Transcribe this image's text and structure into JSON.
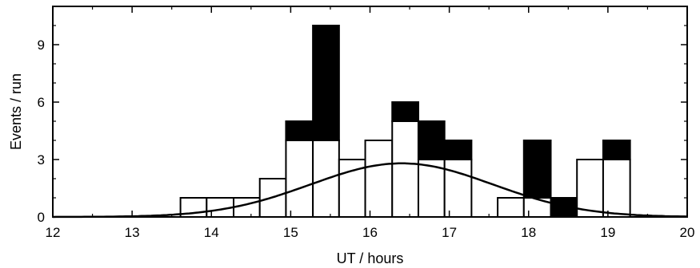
{
  "chart_data": {
    "type": "bar",
    "stacked": true,
    "xlabel": "UT / hours",
    "ylabel": "Events / run",
    "xlim": [
      12,
      20
    ],
    "ylim": [
      0,
      11
    ],
    "x_ticks": [
      12,
      13,
      14,
      15,
      16,
      17,
      18,
      19,
      20
    ],
    "y_ticks": [
      0,
      3,
      6,
      9
    ],
    "grid": false,
    "bin_width_hours": 0.333,
    "bins": [
      {
        "x0": 13.61,
        "x1": 13.94,
        "open": 1,
        "filled": 0
      },
      {
        "x0": 13.94,
        "x1": 14.28,
        "open": 1,
        "filled": 0
      },
      {
        "x0": 14.28,
        "x1": 14.61,
        "open": 1,
        "filled": 0
      },
      {
        "x0": 14.61,
        "x1": 14.94,
        "open": 2,
        "filled": 0
      },
      {
        "x0": 14.94,
        "x1": 15.28,
        "open": 4,
        "filled": 1
      },
      {
        "x0": 15.28,
        "x1": 15.61,
        "open": 4,
        "filled": 6
      },
      {
        "x0": 15.61,
        "x1": 15.94,
        "open": 3,
        "filled": 0
      },
      {
        "x0": 15.94,
        "x1": 16.28,
        "open": 4,
        "filled": 0
      },
      {
        "x0": 16.28,
        "x1": 16.61,
        "open": 5,
        "filled": 1
      },
      {
        "x0": 16.61,
        "x1": 16.94,
        "open": 3,
        "filled": 2
      },
      {
        "x0": 16.94,
        "x1": 17.28,
        "open": 3,
        "filled": 1
      },
      {
        "x0": 17.61,
        "x1": 17.94,
        "open": 1,
        "filled": 0
      },
      {
        "x0": 17.94,
        "x1": 18.28,
        "open": 1,
        "filled": 3
      },
      {
        "x0": 18.28,
        "x1": 18.61,
        "open": 0,
        "filled": 1
      },
      {
        "x0": 18.61,
        "x1": 18.94,
        "open": 3,
        "filled": 0
      },
      {
        "x0": 18.94,
        "x1": 19.28,
        "open": 3,
        "filled": 1
      }
    ],
    "curve": {
      "type": "gaussian",
      "peak": 2.8,
      "mean": 16.4,
      "sigma": 1.15
    },
    "colors": {
      "filled": "#000000",
      "open": "#ffffff",
      "line": "#000000"
    }
  }
}
